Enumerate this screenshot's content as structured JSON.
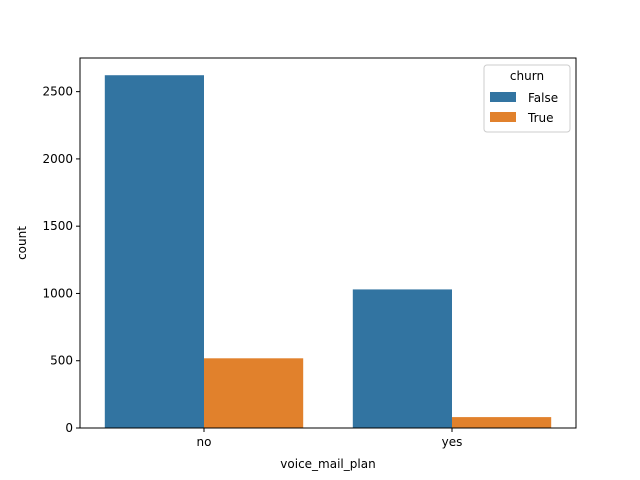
{
  "chart_data": {
    "type": "bar",
    "xlabel": "voice_mail_plan",
    "ylabel": "count",
    "categories": [
      "no",
      "yes"
    ],
    "ylim": [
      0,
      2750
    ],
    "yticks": [
      0,
      500,
      1000,
      1500,
      2000,
      2500
    ],
    "grid": false,
    "legend": {
      "title": "churn",
      "placement": "top-right"
    },
    "series": [
      {
        "name": "False",
        "color": "#3274a1",
        "values": [
          2622,
          1030
        ]
      },
      {
        "name": "True",
        "color": "#e1812c",
        "values": [
          518,
          81
        ]
      }
    ]
  }
}
